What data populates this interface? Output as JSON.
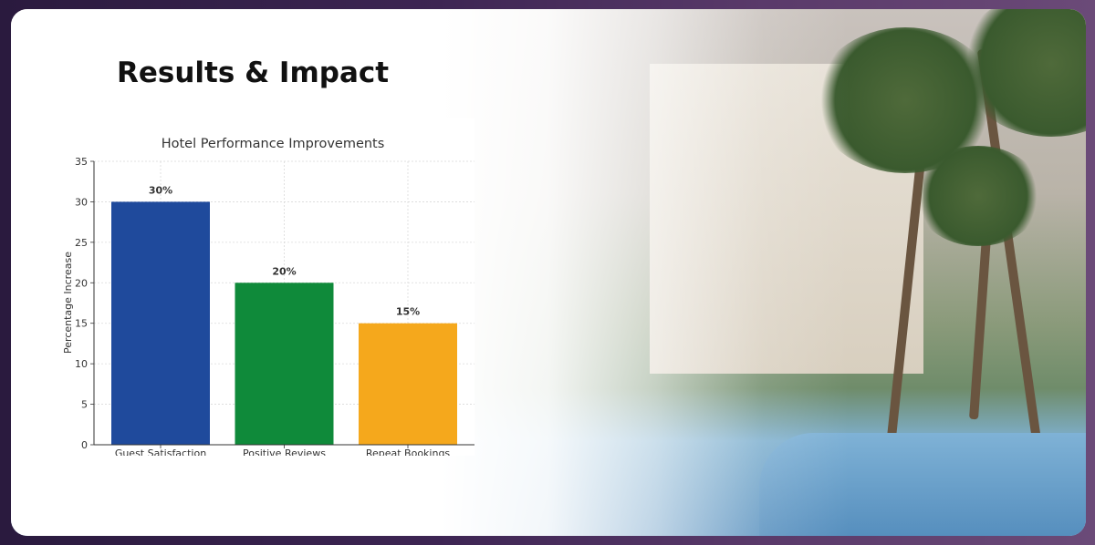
{
  "heading": "Results & Impact",
  "chart_data": {
    "type": "bar",
    "title": "Hotel Performance Improvements",
    "xlabel": "",
    "ylabel": "Percentage Increase",
    "categories": [
      "Guest Satisfaction",
      "Positive Reviews",
      "Repeat Bookings"
    ],
    "values": [
      30,
      20,
      15
    ],
    "data_labels": [
      "30%",
      "20%",
      "15%"
    ],
    "colors": [
      "#1f4a9c",
      "#0f8a3a",
      "#f5a81c"
    ],
    "ylim": [
      0,
      35
    ],
    "yticks": [
      0,
      5,
      10,
      15,
      20,
      25,
      30,
      35
    ],
    "grid": true
  }
}
